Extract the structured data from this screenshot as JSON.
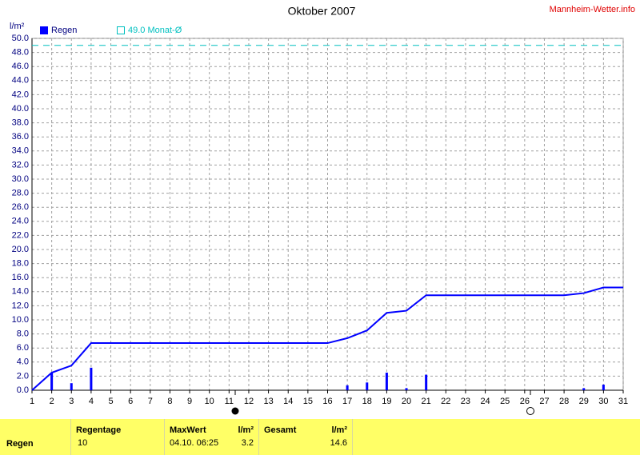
{
  "chart_data": {
    "type": "bar-line",
    "title": "Oktober 2007",
    "ylabel": "l/m²",
    "source": "Mannheim-Wetter.info",
    "xlim": [
      1,
      31
    ],
    "xticks": [
      1,
      2,
      3,
      4,
      5,
      6,
      7,
      8,
      9,
      10,
      11,
      12,
      13,
      14,
      15,
      16,
      17,
      18,
      19,
      20,
      21,
      22,
      23,
      24,
      25,
      26,
      27,
      28,
      29,
      30,
      31
    ],
    "ylim": [
      0,
      50
    ],
    "yticks": [
      {
        "value": 0,
        "label": "0.0"
      },
      {
        "value": 2,
        "label": "2.0"
      },
      {
        "value": 4,
        "label": "4.0"
      },
      {
        "value": 6,
        "label": "6.0"
      },
      {
        "value": 8,
        "label": "8.0"
      },
      {
        "value": 10,
        "label": "10.0"
      },
      {
        "value": 12,
        "label": "12.0"
      },
      {
        "value": 14,
        "label": "14.0"
      },
      {
        "value": 16,
        "label": "16.0"
      },
      {
        "value": 18,
        "label": "18.0"
      },
      {
        "value": 20,
        "label": "20.0"
      },
      {
        "value": 22,
        "label": "22.0"
      },
      {
        "value": 24,
        "label": "24.0"
      },
      {
        "value": 26,
        "label": "26.0"
      },
      {
        "value": 28,
        "label": "28.0"
      },
      {
        "value": 30,
        "label": "30.0"
      },
      {
        "value": 32,
        "label": "32.0"
      },
      {
        "value": 34,
        "label": "34.0"
      },
      {
        "value": 36,
        "label": "36.0"
      },
      {
        "value": 38,
        "label": "38.0"
      },
      {
        "value": 40,
        "label": "40.0"
      },
      {
        "value": 42,
        "label": "42.0"
      },
      {
        "value": 44,
        "label": "44.0"
      },
      {
        "value": 46,
        "label": "46.0"
      },
      {
        "value": 48,
        "label": "48.0"
      },
      {
        "value": 50,
        "label": "50.0"
      }
    ],
    "grid": true,
    "series": [
      {
        "name": "Regen",
        "type": "bar",
        "color": "#0000ff",
        "x": [
          2,
          3,
          4,
          17,
          18,
          19,
          20,
          21,
          29,
          30
        ],
        "values": [
          2.5,
          1.0,
          3.2,
          0.7,
          1.1,
          2.5,
          0.3,
          2.2,
          0.3,
          0.8
        ]
      },
      {
        "type": "line",
        "color": "#0000ff",
        "x": [
          1,
          2,
          3,
          4,
          5,
          6,
          7,
          8,
          9,
          10,
          11,
          12,
          13,
          14,
          15,
          16,
          17,
          18,
          19,
          20,
          21,
          22,
          23,
          24,
          25,
          26,
          27,
          28,
          29,
          30,
          31
        ],
        "values": [
          0,
          2.5,
          3.5,
          6.7,
          6.7,
          6.7,
          6.7,
          6.7,
          6.7,
          6.7,
          6.7,
          6.7,
          6.7,
          6.7,
          6.7,
          6.7,
          7.4,
          8.5,
          11.0,
          11.3,
          13.5,
          13.5,
          13.5,
          13.5,
          13.5,
          13.5,
          13.5,
          13.5,
          13.8,
          14.6,
          14.6
        ]
      }
    ],
    "reference": {
      "value": 49.0,
      "label": "49.0 Monat-Ø",
      "color": "#00c0c0"
    }
  },
  "table": {
    "columns": [
      {
        "title": "Regentage"
      },
      {
        "title": "MaxWert",
        "unit": "l/m²"
      },
      {
        "title": "Gesamt",
        "unit": "l/m²"
      }
    ],
    "rows": [
      {
        "label": "Regen",
        "regentage": 10,
        "maxwert_time": "04.10. 06:25",
        "maxwert": 3.2,
        "gesamt": 14.6
      }
    ]
  }
}
